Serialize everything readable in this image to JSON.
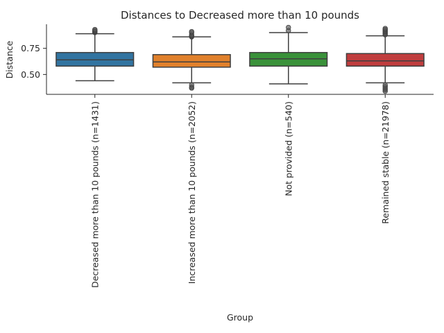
{
  "chart_data": {
    "type": "box",
    "title": "Distances to Decreased more than 10 pounds",
    "xlabel": "Group",
    "ylabel": "Distance",
    "ylim": [
      0.31,
      0.98
    ],
    "yticks": [
      "0.50",
      "0.75"
    ],
    "ytick_values": [
      0.5,
      0.75
    ],
    "grid": false,
    "categories": [
      "Decreased more than 10 pounds (n=1431)",
      "Increased more than 10 pounds (n=2052)",
      "Not provided (n=540)",
      "Remained stable (n=21978)"
    ],
    "colors": [
      "#3274a1",
      "#e1812c",
      "#3a923a",
      "#c03d3e"
    ],
    "boxes": [
      {
        "whisker_low": 0.44,
        "q1": 0.58,
        "median": 0.64,
        "q3": 0.71,
        "whisker_high": 0.89,
        "outliers": [
          0.9,
          0.905,
          0.91,
          0.915,
          0.92,
          0.93
        ]
      },
      {
        "whisker_low": 0.42,
        "q1": 0.57,
        "median": 0.62,
        "q3": 0.69,
        "whisker_high": 0.86,
        "outliers": [
          0.37,
          0.38,
          0.4,
          0.86,
          0.865,
          0.87,
          0.88,
          0.9,
          0.91
        ]
      },
      {
        "whisker_low": 0.41,
        "q1": 0.58,
        "median": 0.65,
        "q3": 0.71,
        "whisker_high": 0.9,
        "outliers": [
          0.92,
          0.95
        ]
      },
      {
        "whisker_low": 0.42,
        "q1": 0.58,
        "median": 0.63,
        "q3": 0.7,
        "whisker_high": 0.87,
        "outliers": [
          0.34,
          0.355,
          0.37,
          0.385,
          0.4,
          0.88,
          0.89,
          0.9,
          0.91,
          0.92,
          0.93,
          0.94
        ]
      }
    ]
  }
}
